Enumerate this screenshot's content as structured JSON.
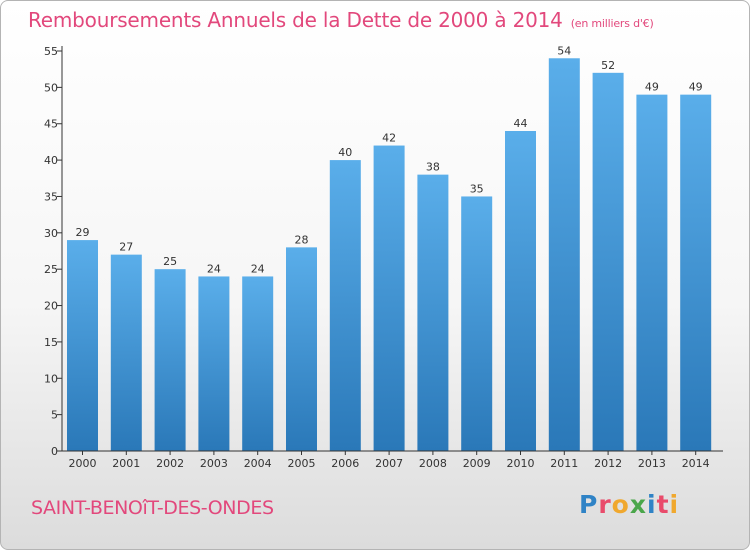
{
  "title": "Remboursements Annuels de la Dette de 2000 à 2014",
  "subtitle": "(en milliers d'€)",
  "commune": "SAINT-BENOîT-DES-ONDES",
  "logo": {
    "text": "Proxiti",
    "letter_colors": [
      "#2f83c6",
      "#e94b6b",
      "#f0a82e",
      "#4aa64a",
      "#2f83c6",
      "#e94b6b",
      "#f0a82e"
    ]
  },
  "colors": {
    "bar_light": "#5aaeea",
    "bar_dark": "#2a78b8",
    "title": "#e2487c",
    "axis": "#333333"
  },
  "chart_data": {
    "type": "bar",
    "title": "Remboursements Annuels de la Dette de 2000 à 2014",
    "xlabel": "",
    "ylabel": "",
    "unit": "en milliers d'€",
    "categories": [
      "2000",
      "2001",
      "2002",
      "2003",
      "2004",
      "2005",
      "2006",
      "2007",
      "2008",
      "2009",
      "2010",
      "2011",
      "2012",
      "2013",
      "2014"
    ],
    "values": [
      29,
      27,
      25,
      24,
      24,
      28,
      40,
      42,
      38,
      35,
      44,
      54,
      52,
      49,
      49
    ],
    "ylim": [
      0,
      55
    ],
    "yticks": [
      0,
      5,
      10,
      15,
      20,
      25,
      30,
      35,
      40,
      45,
      50,
      55
    ],
    "grid": false,
    "data_labels": true
  }
}
